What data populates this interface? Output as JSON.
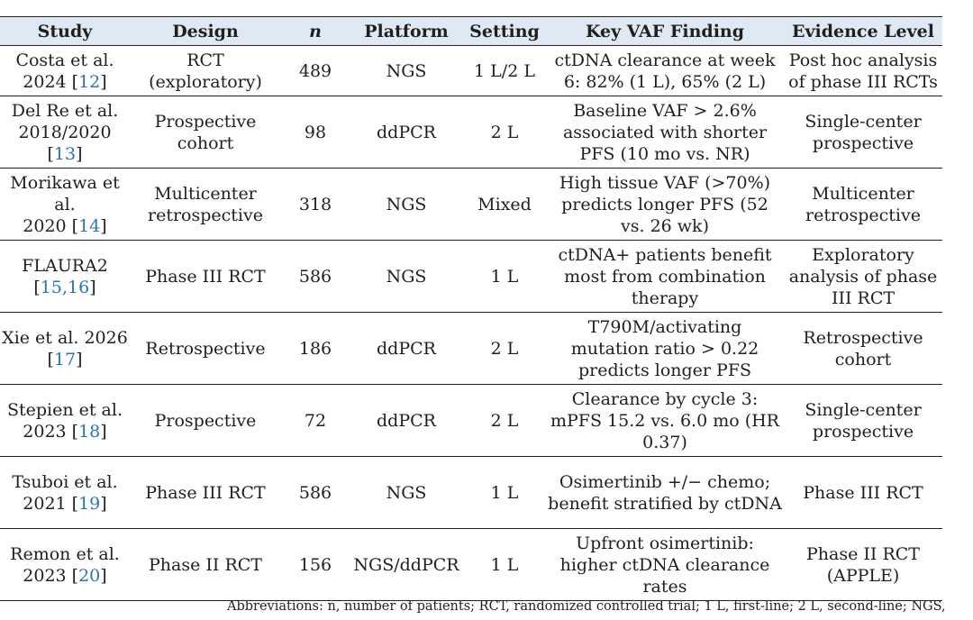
{
  "headers": [
    "Study",
    "Design",
    "n",
    "Platform",
    "Setting",
    "Key VAF Finding",
    "Evidence Level"
  ],
  "rows": [
    {
      "study_line1": "Costa et al.",
      "study_line2_pre": "2024 [",
      "ref": "12",
      "study_line2_post": "]",
      "design": "RCT (exploratory)",
      "n": "489",
      "platform": "NGS",
      "setting": "1 L/2 L",
      "finding": "ctDNA clearance at week 6: 82% (1 L), 65% (2 L)",
      "evidence": "Post hoc analysis of phase III RCTs"
    },
    {
      "study_line1": "Del Re et al.",
      "study_line2_pre": "2018/2020 [",
      "ref": "13",
      "study_line2_post": "]",
      "design": "Prospective cohort",
      "n": "98",
      "platform": "ddPCR",
      "setting": "2 L",
      "finding": "Baseline VAF > 2.6% associated with shorter PFS (10 mo vs. NR)",
      "evidence": "Single-center prospective"
    },
    {
      "study_line1": "Morikawa et al.",
      "study_line2_pre": "2020 [",
      "ref": "14",
      "study_line2_post": "]",
      "design": "Multicenter retrospective",
      "n": "318",
      "platform": "NGS",
      "setting": "Mixed",
      "finding": "High tissue VAF (>70%) predicts longer PFS (52 vs. 26 wk)",
      "evidence": "Multicenter retrospective"
    },
    {
      "study_line1": "FLAURA2",
      "study_line2_pre": "[",
      "ref": "15,16",
      "study_line2_post": "]",
      "design": "Phase III RCT",
      "n": "586",
      "platform": "NGS",
      "setting": "1 L",
      "finding": "ctDNA+ patients benefit most from combination therapy",
      "evidence": "Exploratory analysis of phase III RCT"
    },
    {
      "study_line1": "Xie et al. 2026",
      "study_line2_pre": "[",
      "ref": "17",
      "study_line2_post": "]",
      "design": "Retrospective",
      "n": "186",
      "platform": "ddPCR",
      "setting": "2 L",
      "finding": "T790M/activating mutation ratio > 0.22 predicts longer PFS",
      "evidence": "Retrospective cohort"
    },
    {
      "study_line1": "Stepien et al.",
      "study_line2_pre": "2023 [",
      "ref": "18",
      "study_line2_post": "]",
      "design": "Prospective",
      "n": "72",
      "platform": "ddPCR",
      "setting": "2 L",
      "finding": "Clearance by cycle 3: mPFS 15.2 vs. 6.0 mo (HR 0.37)",
      "evidence": "Single-center prospective"
    },
    {
      "study_line1": "Tsuboi et al.",
      "study_line2_pre": "2021 [",
      "ref": "19",
      "study_line2_post": "]",
      "design": "Phase III RCT",
      "n": "586",
      "platform": "NGS",
      "setting": "1 L",
      "finding": "Osimertinib +/− chemo; benefit stratified by ctDNA",
      "evidence": "Phase III RCT"
    },
    {
      "study_line1": "Remon et al.",
      "study_line2_pre": "2023 [",
      "ref": "20",
      "study_line2_post": "]",
      "design": "Phase II RCT",
      "n": "156",
      "platform": "NGS/ddPCR",
      "setting": "1 L",
      "finding": "Upfront osimertinib: higher ctDNA clearance rates",
      "evidence": "Phase II RCT (APPLE)"
    }
  ],
  "footnote": "Abbreviations: n, number of patients; RCT, randomized controlled trial; 1 L, first-line; 2 L, second-line; NGS,",
  "colors": {
    "header_bg": "#dfe9f4",
    "ref_link": "#2a72b5",
    "rule": "#222222"
  }
}
